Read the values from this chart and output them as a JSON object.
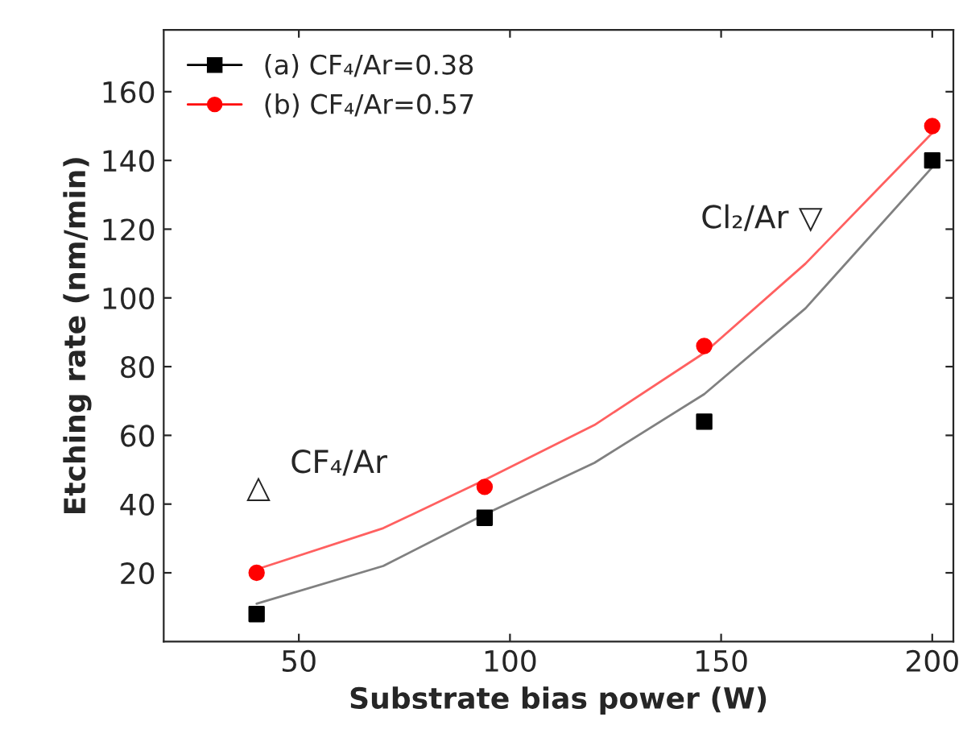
{
  "chart_data": {
    "type": "scatter",
    "xlabel": "Substrate bias power (W)",
    "ylabel": "Etching rate (nm/min)",
    "xlim": [
      18,
      205
    ],
    "xticks": [
      50,
      100,
      150,
      200
    ],
    "ylim": [
      0,
      178
    ],
    "yticks": [
      20,
      40,
      60,
      80,
      100,
      120,
      140,
      160
    ],
    "grid": false,
    "legend": "top left",
    "series": [
      {
        "name": "(a) CF₄/Ar=0.38",
        "marker": "square",
        "color": "#000000",
        "x": [
          40,
          94,
          146,
          200
        ],
        "values": [
          8,
          36,
          64,
          140
        ]
      },
      {
        "name": "(b) CF₄/Ar=0.57",
        "marker": "circle",
        "color": "#ff0000",
        "x": [
          40,
          94,
          146,
          200
        ],
        "values": [
          20,
          45,
          86,
          150
        ]
      },
      {
        "type": "line",
        "marker": "none",
        "color": "#808080",
        "x": [
          40,
          70,
          94,
          120,
          146,
          170,
          200
        ],
        "values": [
          11,
          22,
          37,
          52,
          72,
          97,
          138
        ]
      },
      {
        "type": "line",
        "marker": "none",
        "color": "#ff6060",
        "x": [
          40,
          70,
          94,
          120,
          146,
          170,
          200
        ],
        "values": [
          21,
          33,
          47,
          63,
          84,
          110,
          148
        ]
      }
    ],
    "annotations": [
      "△",
      "CF₄/Ar",
      "Cl₂/Ar ▽"
    ]
  }
}
